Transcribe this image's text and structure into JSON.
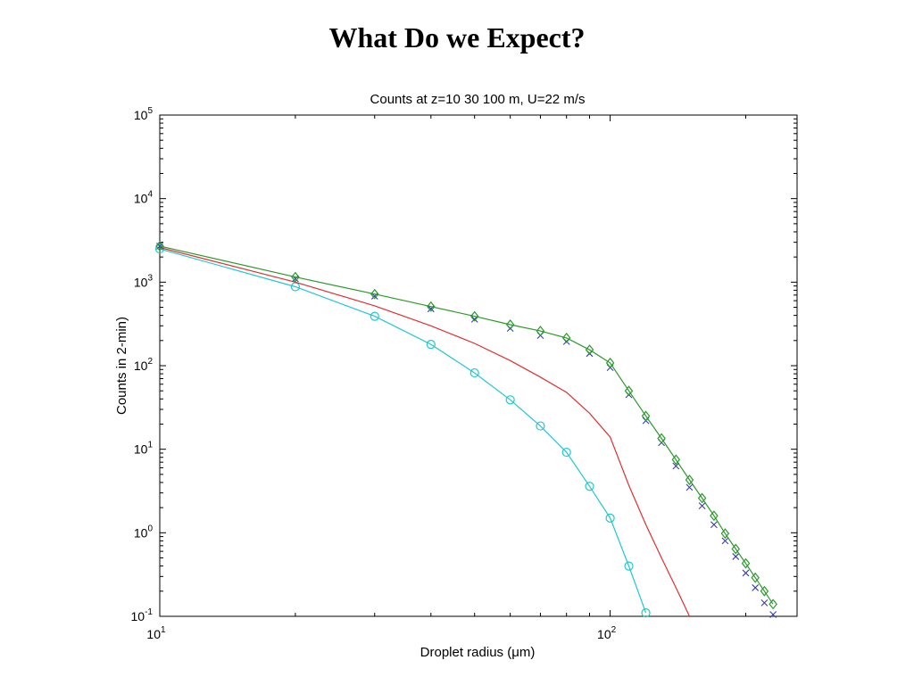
{
  "slide": {
    "title": "What Do we Expect?"
  },
  "chart_data": {
    "type": "line",
    "title": "Counts at z=10 30 100 m, U=22 m/s",
    "xlabel": "Droplet radius (μm)",
    "ylabel": "Counts in 2-min)",
    "xscale": "log",
    "yscale": "log",
    "xlim": [
      10,
      260
    ],
    "ylim": [
      0.1,
      100000
    ],
    "grid": false,
    "x_ticks": [
      {
        "value": 10,
        "base": "10",
        "exp": "1"
      },
      {
        "value": 100,
        "base": "10",
        "exp": "2"
      }
    ],
    "y_ticks": [
      {
        "value": 0.1,
        "base": "10",
        "exp": "-1"
      },
      {
        "value": 1,
        "base": "10",
        "exp": "0"
      },
      {
        "value": 10,
        "base": "10",
        "exp": "1"
      },
      {
        "value": 100,
        "base": "10",
        "exp": "2"
      },
      {
        "value": 1000,
        "base": "10",
        "exp": "3"
      },
      {
        "value": 10000,
        "base": "10",
        "exp": "4"
      },
      {
        "value": 100000,
        "base": "10",
        "exp": "5"
      }
    ],
    "series": [
      {
        "color": "#1fc8d0",
        "line": true,
        "marker": "circle",
        "x": [
          10,
          20,
          30,
          40,
          50,
          60,
          70,
          80,
          90,
          100,
          110,
          120
        ],
        "y": [
          2500,
          880,
          390,
          180,
          82,
          39,
          19,
          9.2,
          3.6,
          1.5,
          0.4,
          0.11
        ]
      },
      {
        "color": "#e03030",
        "line": true,
        "marker": "none",
        "x": [
          10,
          20,
          30,
          40,
          50,
          60,
          70,
          80,
          90,
          100,
          110,
          120,
          130,
          140,
          150
        ],
        "y": [
          2600,
          1000,
          520,
          300,
          185,
          115,
          73,
          48,
          27,
          14,
          3.7,
          1.25,
          0.5,
          0.22,
          0.1
        ]
      },
      {
        "color": "#3a3ab8",
        "line": false,
        "marker": "x",
        "x": [
          10,
          20,
          30,
          40,
          50,
          60,
          70,
          80,
          90,
          100,
          110,
          120,
          130,
          140,
          150,
          160,
          170,
          180,
          190,
          200,
          210,
          220,
          230
        ],
        "y": [
          2700,
          1100,
          680,
          480,
          360,
          280,
          230,
          195,
          140,
          95,
          45,
          22,
          12,
          6.3,
          3.5,
          2.1,
          1.25,
          0.8,
          0.52,
          0.33,
          0.22,
          0.145,
          0.105
        ]
      },
      {
        "color": "#2a9a2a",
        "line": true,
        "marker": "diamond",
        "x": [
          10,
          20,
          30,
          40,
          50,
          60,
          70,
          80,
          90,
          100,
          110,
          120,
          130,
          140,
          150,
          160,
          170,
          180,
          190,
          200,
          210,
          220,
          230
        ],
        "y": [
          2700,
          1150,
          720,
          510,
          390,
          310,
          260,
          215,
          155,
          108,
          50,
          25,
          13.5,
          7.5,
          4.3,
          2.6,
          1.6,
          0.98,
          0.64,
          0.43,
          0.29,
          0.2,
          0.14
        ]
      }
    ]
  }
}
